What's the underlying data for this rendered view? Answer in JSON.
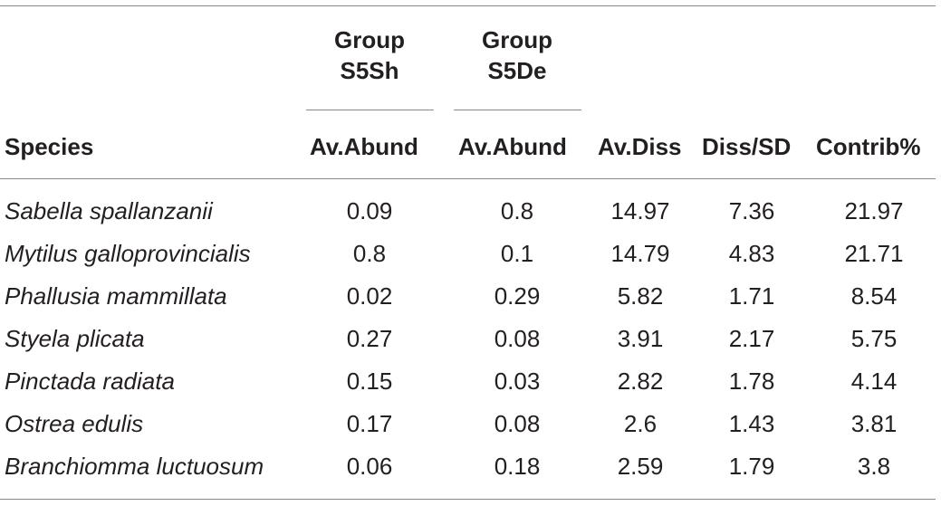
{
  "table": {
    "group_headers": [
      {
        "line1": "Group",
        "line2": "S5Sh"
      },
      {
        "line1": "Group",
        "line2": "S5De"
      }
    ],
    "columns": [
      "Species",
      "Av.Abund",
      "Av.Abund",
      "Av.Diss",
      "Diss/SD",
      "Contrib%"
    ],
    "rows": [
      {
        "species": "Sabella spallanzanii",
        "s5sh": "0.09",
        "s5de": "0.8",
        "av_diss": "14.97",
        "diss_sd": "7.36",
        "contrib": "21.97"
      },
      {
        "species": "Mytilus galloprovincialis",
        "s5sh": "0.8",
        "s5de": "0.1",
        "av_diss": "14.79",
        "diss_sd": "4.83",
        "contrib": "21.71"
      },
      {
        "species": "Phallusia mammillata",
        "s5sh": "0.02",
        "s5de": "0.29",
        "av_diss": "5.82",
        "diss_sd": "1.71",
        "contrib": "8.54"
      },
      {
        "species": "Styela plicata",
        "s5sh": "0.27",
        "s5de": "0.08",
        "av_diss": "3.91",
        "diss_sd": "2.17",
        "contrib": "5.75"
      },
      {
        "species": "Pinctada radiata",
        "s5sh": "0.15",
        "s5de": "0.03",
        "av_diss": "2.82",
        "diss_sd": "1.78",
        "contrib": "4.14"
      },
      {
        "species": "Ostrea edulis",
        "s5sh": "0.17",
        "s5de": "0.08",
        "av_diss": "2.6",
        "diss_sd": "1.43",
        "contrib": "3.81"
      },
      {
        "species": "Branchiomma luctuosum",
        "s5sh": "0.06",
        "s5de": "0.18",
        "av_diss": "2.59",
        "diss_sd": "1.79",
        "contrib": "3.8"
      }
    ]
  }
}
